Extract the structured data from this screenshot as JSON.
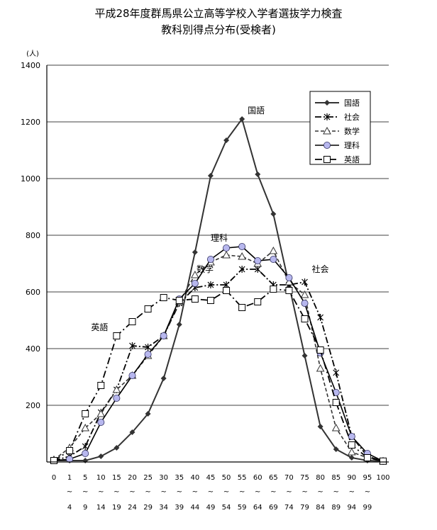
{
  "chart_data": {
    "type": "line",
    "title": "平成28年度群馬県公立高等学校入学者選抜学力検査",
    "subtitle": "教科別得点分布(受検者)",
    "ylabel": "(人)",
    "xlabel": "",
    "ylim": [
      0,
      1400
    ],
    "yticks": [
      200,
      400,
      600,
      800,
      1000,
      1200,
      1400
    ],
    "grid": true,
    "legend_position": "top-right",
    "x_lower": [
      "0",
      "1",
      "5",
      "10",
      "15",
      "20",
      "25",
      "30",
      "35",
      "40",
      "45",
      "50",
      "55",
      "60",
      "65",
      "70",
      "75",
      "80",
      "85",
      "90",
      "95",
      "100"
    ],
    "x_mid": [
      "",
      "~",
      "~",
      "~",
      "~",
      "~",
      "~",
      "~",
      "~",
      "~",
      "~",
      "~",
      "~",
      "~",
      "~",
      "~",
      "~",
      "~",
      "~",
      "~",
      "~",
      ""
    ],
    "x_upper": [
      "",
      "4",
      "9",
      "14",
      "19",
      "24",
      "29",
      "34",
      "39",
      "44",
      "49",
      "54",
      "59",
      "64",
      "69",
      "74",
      "79",
      "84",
      "89",
      "94",
      "99",
      ""
    ],
    "series": [
      {
        "name": "国語",
        "color": "#333333",
        "values": [
          5,
          5,
          5,
          20,
          50,
          105,
          170,
          295,
          485,
          740,
          1010,
          1135,
          1210,
          1015,
          875,
          625,
          375,
          125,
          45,
          15,
          5,
          3
        ]
      },
      {
        "name": "社会",
        "color": "#000000",
        "values": [
          5,
          20,
          55,
          175,
          255,
          410,
          405,
          445,
          560,
          615,
          625,
          625,
          680,
          680,
          625,
          625,
          635,
          510,
          315,
          90,
          20,
          3
        ]
      },
      {
        "name": "数学",
        "color": "#333333",
        "values": [
          8,
          50,
          120,
          170,
          255,
          305,
          375,
          445,
          565,
          660,
          705,
          730,
          725,
          700,
          745,
          635,
          590,
          330,
          120,
          35,
          15,
          3
        ]
      },
      {
        "name": "理科",
        "color": "#000000",
        "values": [
          5,
          10,
          30,
          140,
          225,
          305,
          380,
          445,
          575,
          630,
          715,
          755,
          760,
          710,
          715,
          650,
          560,
          385,
          245,
          90,
          30,
          3
        ]
      },
      {
        "name": "英語",
        "color": "#000000",
        "values": [
          5,
          40,
          170,
          270,
          445,
          495,
          540,
          580,
          570,
          575,
          570,
          605,
          545,
          565,
          610,
          605,
          505,
          395,
          210,
          60,
          15,
          3
        ]
      }
    ],
    "annotations": [
      {
        "text": "国語",
        "x_index": 12,
        "value": 1210
      },
      {
        "text": "理科",
        "x_index": 11,
        "value": 755
      },
      {
        "text": "数学",
        "x_index": 10,
        "value": 705
      },
      {
        "text": "社会",
        "x_index": 16,
        "value": 635
      },
      {
        "text": "英語",
        "x_index": 4,
        "value": 445
      }
    ]
  }
}
